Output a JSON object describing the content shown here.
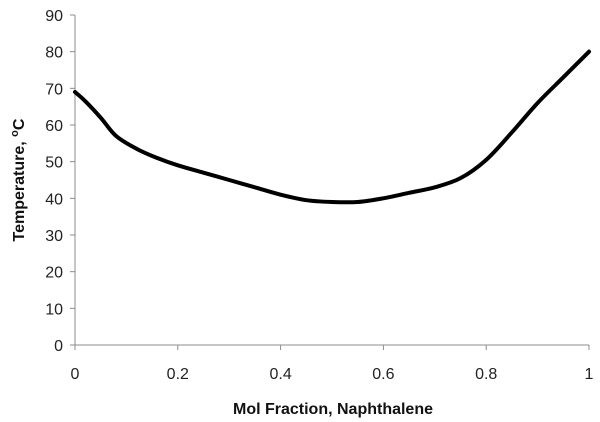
{
  "chart_data": {
    "type": "line",
    "title": "",
    "xlabel": "Mol Fraction, Naphthalene",
    "ylabel_main": "Temperature, ",
    "ylabel_sup": "o",
    "ylabel_tail": "C",
    "xlim": [
      0,
      1
    ],
    "ylim": [
      0,
      90
    ],
    "xticks": [
      0,
      0.2,
      0.4,
      0.6,
      0.8,
      1
    ],
    "xtick_labels": [
      "0",
      "0.2",
      "0.4",
      "0.6",
      "0.8",
      "1"
    ],
    "yticks": [
      0,
      10,
      20,
      30,
      40,
      50,
      60,
      70,
      80,
      90
    ],
    "ytick_labels": [
      "0",
      "10",
      "20",
      "30",
      "40",
      "50",
      "60",
      "70",
      "80",
      "90"
    ],
    "grid": false,
    "legend": "none",
    "line_color": "#000000",
    "series": [
      {
        "x": [
          0,
          0.02,
          0.05,
          0.08,
          0.12,
          0.16,
          0.2,
          0.25,
          0.3,
          0.35,
          0.4,
          0.45,
          0.5,
          0.55,
          0.6,
          0.65,
          0.7,
          0.75,
          0.8,
          0.85,
          0.9,
          0.95,
          1.0
        ],
        "y": [
          69,
          66.5,
          62,
          57,
          53.5,
          51,
          49,
          47,
          45,
          43,
          41,
          39.5,
          39,
          39,
          40,
          41.5,
          43,
          45.5,
          50.5,
          58,
          66,
          73,
          80
        ]
      }
    ]
  }
}
